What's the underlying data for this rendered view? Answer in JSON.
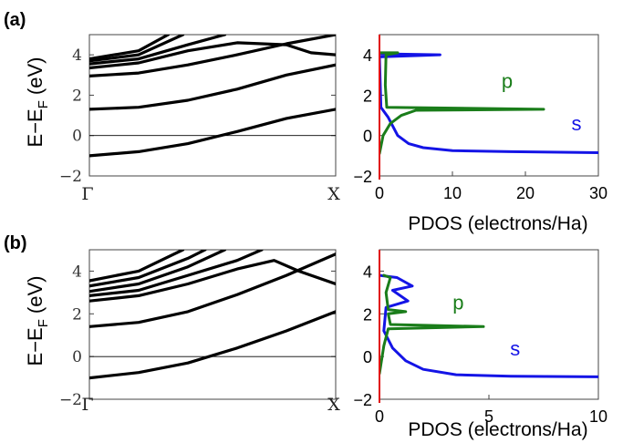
{
  "panels": [
    {
      "label": "(a)",
      "ylabel_main": "E−E",
      "ylabel_sub": "F",
      "ylabel_unit": "(eV)",
      "bands": {
        "type": "line",
        "x_ticks": [
          "Γ",
          "X"
        ],
        "y_ticks": [
          -2,
          0,
          2,
          4
        ],
        "ylim": [
          -2,
          5
        ],
        "fermi_level": 0,
        "curves": [
          [
            [
              0,
              -1.0
            ],
            [
              0.2,
              -0.8
            ],
            [
              0.4,
              -0.4
            ],
            [
              0.6,
              0.2
            ],
            [
              0.8,
              0.85
            ],
            [
              1.0,
              1.3
            ]
          ],
          [
            [
              0,
              1.3
            ],
            [
              0.2,
              1.4
            ],
            [
              0.4,
              1.75
            ],
            [
              0.6,
              2.3
            ],
            [
              0.8,
              3.0
            ],
            [
              1.0,
              3.5
            ]
          ],
          [
            [
              0,
              2.95
            ],
            [
              0.2,
              3.1
            ],
            [
              0.4,
              3.5
            ],
            [
              0.6,
              4.0
            ],
            [
              0.8,
              4.55
            ],
            [
              1.0,
              5.0
            ]
          ],
          [
            [
              0,
              3.35
            ],
            [
              0.2,
              3.6
            ],
            [
              0.4,
              4.2
            ],
            [
              0.6,
              4.6
            ],
            [
              0.8,
              4.5
            ],
            [
              0.9,
              4.1
            ],
            [
              1.0,
              4.0
            ]
          ],
          [
            [
              0,
              3.55
            ],
            [
              0.2,
              3.8
            ],
            [
              0.4,
              4.5
            ],
            [
              0.55,
              5.0
            ]
          ],
          [
            [
              0,
              3.7
            ],
            [
              0.2,
              4.0
            ],
            [
              0.38,
              5.0
            ]
          ],
          [
            [
              0,
              3.8
            ],
            [
              0.2,
              4.2
            ],
            [
              0.32,
              5.0
            ]
          ]
        ]
      },
      "pdos": {
        "type": "line",
        "xlabel": "PDOS (electrons/Ha)",
        "x_ticks": [
          0,
          10,
          20,
          30
        ],
        "y_ticks": [
          -2,
          0,
          2,
          4
        ],
        "xlim": [
          0,
          30
        ],
        "ylim": [
          -2,
          5
        ],
        "series": [
          {
            "name": "s",
            "color": "#1414e6",
            "points": [
              [
                0,
                4.05
              ],
              [
                8.3,
                4.0
              ],
              [
                0,
                3.9
              ],
              [
                0.2,
                1.4
              ],
              [
                1.2,
                0.9
              ],
              [
                2.5,
                0.0
              ],
              [
                4.0,
                -0.4
              ],
              [
                6.0,
                -0.6
              ],
              [
                10,
                -0.75
              ],
              [
                18,
                -0.8
              ],
              [
                30,
                -0.85
              ]
            ]
          },
          {
            "name": "p",
            "color": "#1a7d1a",
            "points": [
              [
                0,
                -0.9
              ],
              [
                0.5,
                0.0
              ],
              [
                1.5,
                0.6
              ],
              [
                3.0,
                1.0
              ],
              [
                5.0,
                1.25
              ],
              [
                22.5,
                1.3
              ],
              [
                1.0,
                1.4
              ],
              [
                0.8,
                2.5
              ],
              [
                0.9,
                4.0
              ],
              [
                2.5,
                4.1
              ],
              [
                0,
                4.1
              ]
            ]
          }
        ],
        "annotations": [
          {
            "text": "p",
            "color": "#1a7d1a",
            "x": 17.5,
            "y": 2.35
          },
          {
            "text": "s",
            "color": "#1414e6",
            "x": 27,
            "y": 0.25
          }
        ]
      }
    },
    {
      "label": "(b)",
      "ylabel_main": "E−E",
      "ylabel_sub": "F",
      "ylabel_unit": "(eV)",
      "bands": {
        "type": "line",
        "x_ticks": [
          "Γ",
          "X"
        ],
        "y_ticks": [
          -2,
          0,
          2,
          4
        ],
        "ylim": [
          -2,
          5
        ],
        "fermi_level": 0,
        "curves": [
          [
            [
              0,
              -1.0
            ],
            [
              0.2,
              -0.75
            ],
            [
              0.4,
              -0.3
            ],
            [
              0.6,
              0.4
            ],
            [
              0.8,
              1.2
            ],
            [
              1.0,
              2.1
            ]
          ],
          [
            [
              0,
              1.4
            ],
            [
              0.2,
              1.6
            ],
            [
              0.4,
              2.1
            ],
            [
              0.6,
              2.9
            ],
            [
              0.8,
              3.8
            ],
            [
              1.0,
              4.8
            ]
          ],
          [
            [
              0,
              2.6
            ],
            [
              0.2,
              2.85
            ],
            [
              0.4,
              3.4
            ],
            [
              0.6,
              4.1
            ],
            [
              0.75,
              4.5
            ],
            [
              0.85,
              4.0
            ],
            [
              1.0,
              3.4
            ]
          ],
          [
            [
              0,
              2.85
            ],
            [
              0.2,
              3.1
            ],
            [
              0.4,
              3.8
            ],
            [
              0.6,
              4.5
            ],
            [
              0.7,
              5.0
            ]
          ],
          [
            [
              0,
              3.05
            ],
            [
              0.2,
              3.4
            ],
            [
              0.4,
              4.2
            ],
            [
              0.55,
              5.0
            ]
          ],
          [
            [
              0,
              3.3
            ],
            [
              0.2,
              3.7
            ],
            [
              0.4,
              4.6
            ],
            [
              0.47,
              5.0
            ]
          ],
          [
            [
              0,
              3.55
            ],
            [
              0.2,
              4.0
            ],
            [
              0.38,
              5.0
            ]
          ]
        ]
      },
      "pdos": {
        "type": "line",
        "xlabel": "PDOS (electrons/Ha)",
        "x_ticks": [
          0,
          5,
          10
        ],
        "y_ticks": [
          -2,
          0,
          2,
          4
        ],
        "xlim": [
          0,
          10
        ],
        "ylim": [
          -2,
          5
        ],
        "series": [
          {
            "name": "s",
            "color": "#1414e6",
            "points": [
              [
                0,
                3.8
              ],
              [
                0.8,
                3.7
              ],
              [
                1.5,
                3.3
              ],
              [
                0.6,
                3.1
              ],
              [
                1.3,
                2.6
              ],
              [
                0.3,
                2.3
              ],
              [
                0.2,
                1.2
              ],
              [
                0.6,
                0.4
              ],
              [
                1.2,
                -0.2
              ],
              [
                2.0,
                -0.6
              ],
              [
                3.5,
                -0.85
              ],
              [
                6.0,
                -0.92
              ],
              [
                10,
                -0.95
              ]
            ]
          },
          {
            "name": "p",
            "color": "#1a7d1a",
            "points": [
              [
                0,
                -0.8
              ],
              [
                0.2,
                0.5
              ],
              [
                0.4,
                1.3
              ],
              [
                4.75,
                1.4
              ],
              [
                0.5,
                1.5
              ],
              [
                0.4,
                2.0
              ],
              [
                1.2,
                2.1
              ],
              [
                0.4,
                2.2
              ],
              [
                0.3,
                3.0
              ],
              [
                0.5,
                3.7
              ],
              [
                0.2,
                3.8
              ]
            ]
          }
        ],
        "annotations": [
          {
            "text": "p",
            "color": "#1a7d1a",
            "x": 3.6,
            "y": 2.2
          },
          {
            "text": "s",
            "color": "#1414e6",
            "x": 6.2,
            "y": 0.05
          }
        ]
      }
    }
  ],
  "chart_data": [
    {
      "type": "line",
      "title": "",
      "ylabel": "E−EF (eV)",
      "x_ticks": [
        "Γ",
        "X"
      ],
      "ylim": [
        -2,
        5
      ]
    },
    {
      "type": "line",
      "title": "",
      "xlabel": "PDOS (electrons/Ha)",
      "xlim": [
        0,
        30
      ],
      "ylim": [
        -2,
        5
      ],
      "series": [
        {
          "name": "s"
        },
        {
          "name": "p"
        }
      ]
    },
    {
      "type": "line",
      "title": "",
      "ylabel": "E−EF (eV)",
      "x_ticks": [
        "Γ",
        "X"
      ],
      "ylim": [
        -2,
        5
      ]
    },
    {
      "type": "line",
      "title": "",
      "xlabel": "PDOS (electrons/Ha)",
      "xlim": [
        0,
        10
      ],
      "ylim": [
        -2,
        5
      ],
      "series": [
        {
          "name": "s"
        },
        {
          "name": "p"
        }
      ]
    }
  ]
}
